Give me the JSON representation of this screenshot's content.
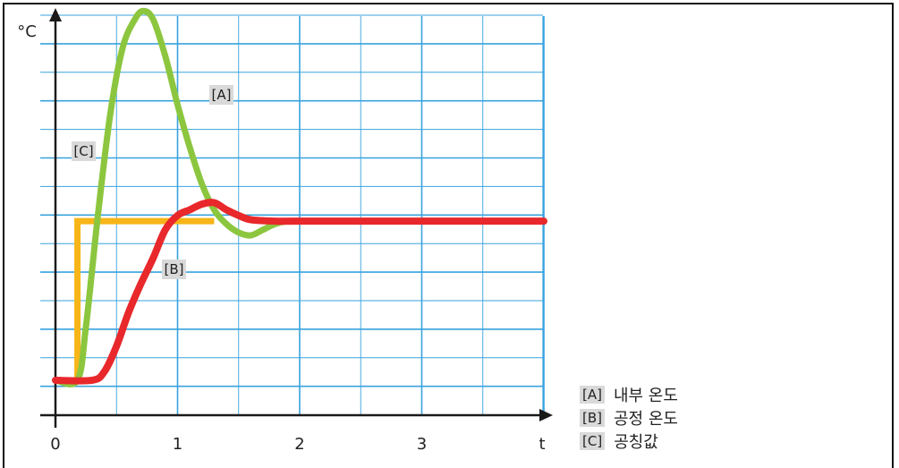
{
  "chart_data": {
    "type": "line",
    "ylabel": "°C",
    "xlabel": "t",
    "x_ticks": [
      "0",
      "1",
      "2",
      "3"
    ],
    "xlim": [
      0,
      4.0
    ],
    "ylim": [
      0,
      13.8
    ],
    "grid": true,
    "series": [
      {
        "key": "[A]",
        "name": "내부 온도",
        "color": "#8cc63f",
        "x": [
          0.0,
          0.18,
          0.25,
          0.35,
          0.45,
          0.55,
          0.65,
          0.72,
          0.8,
          0.9,
          1.0,
          1.1,
          1.2,
          1.3,
          1.4,
          1.5,
          1.6,
          1.7,
          1.8,
          1.9,
          2.0
        ],
        "values": [
          0.6,
          0.6,
          2.5,
          6.5,
          10.0,
          12.3,
          13.3,
          13.6,
          13.3,
          12.0,
          10.3,
          8.8,
          7.5,
          6.6,
          6.1,
          5.8,
          5.7,
          5.9,
          6.1,
          6.2,
          6.2
        ]
      },
      {
        "key": "[B]",
        "name": "공정 온도",
        "color": "#e8282b",
        "x": [
          0.0,
          0.3,
          0.4,
          0.5,
          0.6,
          0.7,
          0.8,
          0.9,
          1.0,
          1.1,
          1.2,
          1.3,
          1.4,
          1.5,
          1.6,
          1.8,
          2.0,
          3.0,
          4.0
        ],
        "values": [
          0.6,
          0.6,
          0.9,
          1.8,
          3.0,
          4.0,
          4.9,
          5.9,
          6.4,
          6.6,
          6.8,
          6.85,
          6.6,
          6.4,
          6.25,
          6.2,
          6.2,
          6.2,
          6.2
        ]
      },
      {
        "key": "[C]",
        "name": "공칭값",
        "color": "#f7b517",
        "x": [
          0.18,
          0.18,
          1.3
        ],
        "values": [
          0.6,
          6.2,
          6.2
        ]
      }
    ],
    "annotations": [
      "[A]",
      "[B]",
      "[C]"
    ]
  }
}
